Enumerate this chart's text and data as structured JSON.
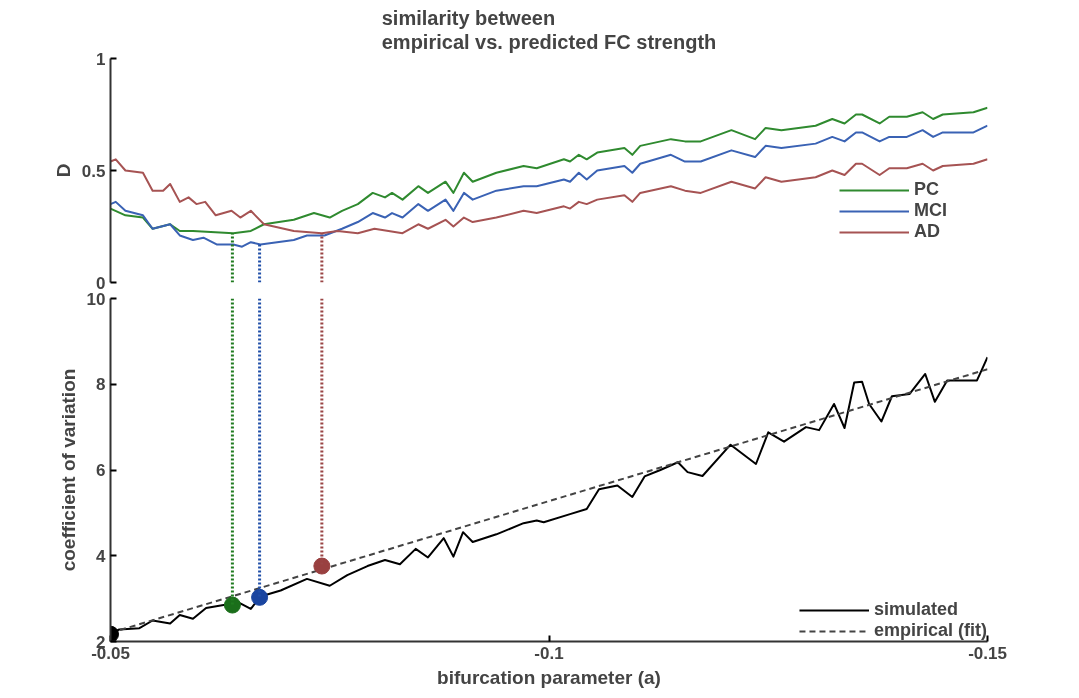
{
  "chart_data": [
    {
      "type": "line",
      "title": "similarity between\nempirical vs. predicted FC strength",
      "ylabel": "D",
      "xlim": [
        -0.05,
        -0.15
      ],
      "ylim": [
        0,
        1
      ],
      "yticks": [
        0,
        0.5,
        1
      ],
      "tick_labels": "y",
      "legend": "right",
      "series": [
        {
          "name": "PC",
          "color": "#2f8a2f",
          "x": [
            -0.05,
            -0.0517,
            -0.0537,
            -0.0548,
            -0.0568,
            -0.0579,
            -0.0594,
            -0.064,
            -0.066,
            -0.0675,
            -0.0709,
            -0.0732,
            -0.075,
            -0.0764,
            -0.0782,
            -0.0799,
            -0.0813,
            -0.0821,
            -0.0833,
            -0.0851,
            -0.0862,
            -0.0882,
            -0.0891,
            -0.0903,
            -0.0913,
            -0.094,
            -0.0971,
            -0.0986,
            -0.1017,
            -0.1024,
            -0.1034,
            -0.1043,
            -0.1055,
            -0.1086,
            -0.1095,
            -0.1104,
            -0.1139,
            -0.1155,
            -0.1173,
            -0.1208,
            -0.1235,
            -0.1247,
            -0.1265,
            -0.1304,
            -0.1323,
            -0.1337,
            -0.135,
            -0.1357,
            -0.1377,
            -0.1388,
            -0.1408,
            -0.1426,
            -0.1438,
            -0.1449,
            -0.1484,
            -0.15
          ],
          "values": [
            0.33,
            0.3,
            0.29,
            0.24,
            0.26,
            0.23,
            0.23,
            0.22,
            0.23,
            0.26,
            0.28,
            0.31,
            0.29,
            0.32,
            0.35,
            0.4,
            0.38,
            0.4,
            0.37,
            0.43,
            0.4,
            0.45,
            0.4,
            0.49,
            0.45,
            0.49,
            0.52,
            0.51,
            0.55,
            0.54,
            0.57,
            0.55,
            0.58,
            0.6,
            0.57,
            0.61,
            0.64,
            0.63,
            0.63,
            0.68,
            0.64,
            0.69,
            0.68,
            0.7,
            0.73,
            0.71,
            0.75,
            0.75,
            0.71,
            0.74,
            0.74,
            0.76,
            0.73,
            0.75,
            0.76,
            0.78
          ]
        },
        {
          "name": "MCI",
          "color": "#3a62b4",
          "x": [
            -0.05,
            -0.0506,
            -0.0517,
            -0.0537,
            -0.0548,
            -0.0568,
            -0.0579,
            -0.0594,
            -0.0606,
            -0.0621,
            -0.064,
            -0.065,
            -0.066,
            -0.0671,
            -0.069,
            -0.0709,
            -0.0724,
            -0.0744,
            -0.0764,
            -0.0782,
            -0.0799,
            -0.0813,
            -0.0821,
            -0.0833,
            -0.0851,
            -0.0862,
            -0.0882,
            -0.0891,
            -0.0903,
            -0.0913,
            -0.094,
            -0.0971,
            -0.0986,
            -0.1017,
            -0.1024,
            -0.1034,
            -0.1043,
            -0.1055,
            -0.1086,
            -0.1095,
            -0.1104,
            -0.1139,
            -0.1155,
            -0.1173,
            -0.1208,
            -0.1235,
            -0.1247,
            -0.1265,
            -0.1304,
            -0.1323,
            -0.1337,
            -0.135,
            -0.1357,
            -0.1377,
            -0.1388,
            -0.1408,
            -0.1426,
            -0.1438,
            -0.1449,
            -0.1484,
            -0.15
          ],
          "values": [
            0.35,
            0.36,
            0.32,
            0.3,
            0.24,
            0.26,
            0.21,
            0.19,
            0.2,
            0.17,
            0.17,
            0.16,
            0.18,
            0.17,
            0.18,
            0.19,
            0.21,
            0.21,
            0.24,
            0.27,
            0.31,
            0.29,
            0.31,
            0.29,
            0.35,
            0.32,
            0.37,
            0.32,
            0.4,
            0.37,
            0.41,
            0.43,
            0.43,
            0.46,
            0.45,
            0.49,
            0.46,
            0.5,
            0.52,
            0.49,
            0.53,
            0.57,
            0.54,
            0.54,
            0.59,
            0.56,
            0.61,
            0.6,
            0.62,
            0.65,
            0.63,
            0.67,
            0.67,
            0.63,
            0.65,
            0.65,
            0.68,
            0.65,
            0.67,
            0.67,
            0.7
          ]
        },
        {
          "name": "AD",
          "color": "#a65353",
          "x": [
            -0.05,
            -0.0506,
            -0.0517,
            -0.0537,
            -0.0548,
            -0.056,
            -0.0568,
            -0.0579,
            -0.0589,
            -0.0598,
            -0.0608,
            -0.062,
            -0.0638,
            -0.0648,
            -0.066,
            -0.0675,
            -0.0709,
            -0.0741,
            -0.0759,
            -0.0782,
            -0.0801,
            -0.0833,
            -0.0851,
            -0.0862,
            -0.0882,
            -0.0891,
            -0.0903,
            -0.0913,
            -0.094,
            -0.0971,
            -0.0986,
            -0.1017,
            -0.1024,
            -0.1034,
            -0.1043,
            -0.1055,
            -0.1086,
            -0.1095,
            -0.1104,
            -0.1139,
            -0.1155,
            -0.1173,
            -0.1208,
            -0.1235,
            -0.1247,
            -0.1265,
            -0.1304,
            -0.1323,
            -0.1337,
            -0.135,
            -0.1357,
            -0.1377,
            -0.1388,
            -0.1408,
            -0.1426,
            -0.1438,
            -0.1449,
            -0.1484,
            -0.15
          ],
          "values": [
            0.54,
            0.55,
            0.5,
            0.49,
            0.41,
            0.41,
            0.44,
            0.36,
            0.38,
            0.35,
            0.36,
            0.3,
            0.32,
            0.29,
            0.32,
            0.26,
            0.23,
            0.22,
            0.23,
            0.22,
            0.24,
            0.22,
            0.26,
            0.24,
            0.28,
            0.25,
            0.29,
            0.27,
            0.29,
            0.32,
            0.31,
            0.34,
            0.33,
            0.36,
            0.35,
            0.37,
            0.39,
            0.36,
            0.4,
            0.43,
            0.41,
            0.4,
            0.45,
            0.42,
            0.47,
            0.45,
            0.47,
            0.5,
            0.48,
            0.53,
            0.53,
            0.48,
            0.51,
            0.51,
            0.53,
            0.5,
            0.52,
            0.53,
            0.55
          ]
        }
      ],
      "ref_lines": [
        {
          "axis": "x",
          "value": -0.0639,
          "color": "#1f7a1f",
          "line_style": "dotted"
        },
        {
          "axis": "x",
          "value": -0.067,
          "color": "#1f4ea8",
          "line_style": "dotted"
        },
        {
          "axis": "x",
          "value": -0.0741,
          "color": "#9a4545",
          "line_style": "dotted"
        }
      ]
    },
    {
      "type": "line",
      "xlabel": "bifurcation parameter (a)",
      "ylabel": "coefficient of variation",
      "xlim": [
        -0.05,
        -0.15
      ],
      "xticks": [
        -0.05,
        -0.1,
        -0.15
      ],
      "ylim": [
        2,
        10
      ],
      "yticks": [
        2,
        4,
        6,
        8,
        10
      ],
      "legend": "bottom right",
      "series": [
        {
          "name": "simulated",
          "color": "#000000",
          "line_style": "solid",
          "x": [
            -0.05,
            -0.051,
            -0.0533,
            -0.0548,
            -0.0568,
            -0.0579,
            -0.0594,
            -0.0609,
            -0.0629,
            -0.0648,
            -0.066,
            -0.0671,
            -0.0694,
            -0.0724,
            -0.075,
            -0.077,
            -0.0793,
            -0.0813,
            -0.083,
            -0.0848,
            -0.0862,
            -0.088,
            -0.0891,
            -0.0902,
            -0.0913,
            -0.094,
            -0.0971,
            -0.0986,
            -0.0994,
            -0.1024,
            -0.1043,
            -0.1057,
            -0.1078,
            -0.1095,
            -0.1109,
            -0.1127,
            -0.1147,
            -0.1158,
            -0.1175,
            -0.1207,
            -0.1236,
            -0.125,
            -0.1268,
            -0.1293,
            -0.1308,
            -0.1325,
            -0.1337,
            -0.1348,
            -0.1357,
            -0.1365,
            -0.1379,
            -0.1391,
            -0.1411,
            -0.1429,
            -0.144,
            -0.1454,
            -0.1488,
            -0.1494,
            -0.15
          ],
          "values": [
            2.19,
            2.28,
            2.31,
            2.49,
            2.42,
            2.62,
            2.53,
            2.78,
            2.85,
            2.89,
            2.76,
            3.05,
            3.19,
            3.46,
            3.3,
            3.55,
            3.76,
            3.9,
            3.8,
            4.16,
            3.96,
            4.41,
            3.98,
            4.55,
            4.32,
            4.5,
            4.76,
            4.82,
            4.78,
            4.97,
            5.09,
            5.55,
            5.64,
            5.37,
            5.85,
            6.0,
            6.18,
            5.95,
            5.86,
            6.59,
            6.14,
            6.88,
            6.66,
            7.0,
            6.93,
            7.54,
            6.98,
            8.04,
            8.06,
            7.54,
            7.13,
            7.72,
            7.77,
            8.24,
            7.59,
            8.09,
            8.09,
            8.36,
            8.63
          ]
        },
        {
          "name": "empirical (fit)",
          "color": "#444444",
          "line_style": "dashed",
          "x": [
            -0.05,
            -0.15
          ],
          "values": [
            2.2,
            8.35
          ]
        },
        {
          "type": "scatter",
          "marker": "circle",
          "x": [
            -0.05,
            -0.0639,
            -0.067,
            -0.0741
          ],
          "values": [
            2.17,
            2.85,
            3.03,
            3.76
          ],
          "colors": [
            "#000000",
            "#1a6e1a",
            "#1a45a0",
            "#994040"
          ]
        }
      ],
      "ref_lines": [
        {
          "axis": "x",
          "value": -0.0639,
          "color": "#1f7a1f",
          "line_style": "dotted"
        },
        {
          "axis": "x",
          "value": -0.067,
          "color": "#1f4ea8",
          "line_style": "dotted"
        },
        {
          "axis": "x",
          "value": -0.0741,
          "color": "#9a4545",
          "line_style": "dotted"
        }
      ]
    }
  ]
}
